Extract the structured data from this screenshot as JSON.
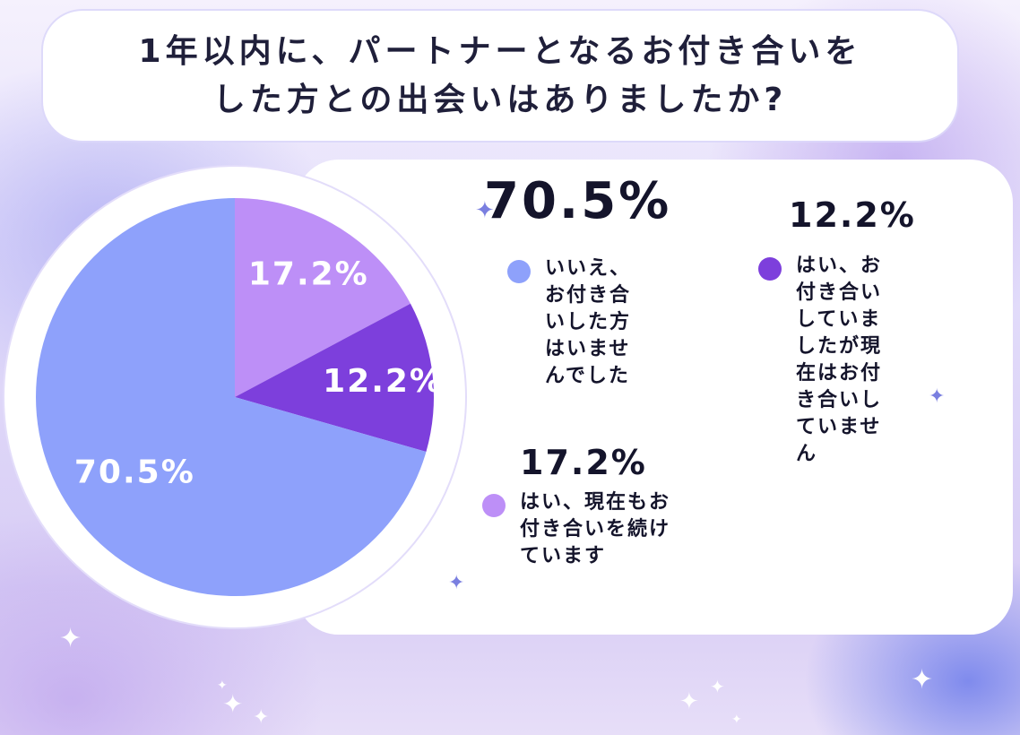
{
  "title": {
    "line1": "1年以内に、パートナーとなるお付き合いを",
    "line2": "した方との出会いはありましたか?"
  },
  "colors": {
    "no": "#8ea1fb",
    "yes_current": "#bd8ff7",
    "yes_ended": "#7d3fdc"
  },
  "chart_data": {
    "type": "pie",
    "title": "1年以内に、パートナーとなるお付き合いをした方との出会いはありましたか?",
    "slices": [
      {
        "key": "yes_current",
        "label": "はい、現在もお付き合いを続けています",
        "value": 17.2,
        "value_label": "17.2%",
        "color": "#bd8ff7"
      },
      {
        "key": "yes_ended",
        "label": "はい、お付き合いしていましたが現在はお付き合いしていません",
        "value": 12.2,
        "value_label": "12.2%",
        "color": "#7d3fdc"
      },
      {
        "key": "no",
        "label": "いいえ、お付き合いした方はいませんでした",
        "value": 70.5,
        "value_label": "70.5%",
        "color": "#8ea1fb"
      }
    ]
  },
  "legend": {
    "no": {
      "pct": "70.5%",
      "lines": [
        "いいえ、",
        "お付き合",
        "いした方",
        "はいませ",
        "んでした"
      ]
    },
    "yes_current": {
      "pct": "17.2%",
      "lines": [
        "はい、現在もお",
        "付き合いを続け",
        "ています"
      ]
    },
    "yes_ended": {
      "pct": "12.2%",
      "lines": [
        "はい、お",
        "付き合い",
        "していま",
        "したが現",
        "在はお付",
        "き合いし",
        "ていませ",
        "ん"
      ]
    }
  }
}
